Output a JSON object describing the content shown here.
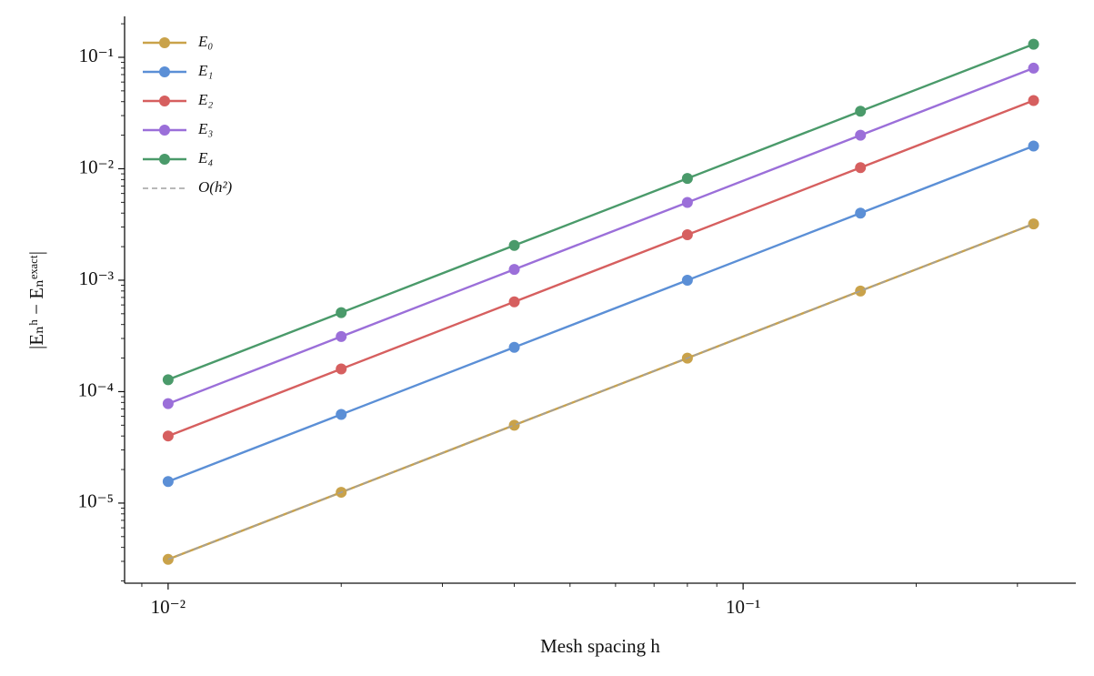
{
  "chart_data": {
    "type": "line",
    "xlabel": "Mesh spacing h",
    "ylabel": "|Eₙʰ − Eₙᵉˣᵃᶜᵗ|",
    "xscale": "log",
    "yscale": "log",
    "x": [
      0.01,
      0.02,
      0.04,
      0.08,
      0.16,
      0.32
    ],
    "series": [
      {
        "name": "E₀",
        "color": "#c9a24a",
        "marker": true,
        "dashed": false,
        "values": [
          3.125e-06,
          1.25e-05,
          5e-05,
          0.0002,
          0.0008,
          0.0032
        ]
      },
      {
        "name": "E₁",
        "color": "#5b8fd6",
        "marker": true,
        "dashed": false,
        "values": [
          1.5625e-05,
          6.25e-05,
          0.00025,
          0.001,
          0.004,
          0.016
        ]
      },
      {
        "name": "E₂",
        "color": "#d65f5f",
        "marker": true,
        "dashed": false,
        "values": [
          4e-05,
          0.00016,
          0.00064,
          0.00256,
          0.01024,
          0.04096
        ]
      },
      {
        "name": "E₃",
        "color": "#9b6fd9",
        "marker": true,
        "dashed": false,
        "values": [
          7.8e-05,
          0.000312,
          0.00125,
          0.00499,
          0.02,
          0.0799
        ]
      },
      {
        "name": "E₄",
        "color": "#4a9a6a",
        "marker": true,
        "dashed": false,
        "values": [
          0.000128,
          0.000512,
          0.00205,
          0.00819,
          0.0328,
          0.131
        ]
      },
      {
        "name": "O(h²)",
        "color": "#a0a0a0",
        "marker": false,
        "dashed": true,
        "values": [
          3.125e-06,
          1.25e-05,
          5e-05,
          0.0002,
          0.0008,
          0.0032
        ]
      }
    ],
    "xlim": [
      0.0084,
      0.379
    ],
    "ylim": [
      1.91e-06,
      0.233
    ],
    "xticks": [
      {
        "value": 0.01,
        "label": "10⁻²"
      },
      {
        "value": 0.1,
        "label": "10⁻¹"
      }
    ],
    "yticks": [
      {
        "value": 1e-05,
        "label": "10⁻⁵"
      },
      {
        "value": 0.0001,
        "label": "10⁻⁴"
      },
      {
        "value": 0.001,
        "label": "10⁻³"
      },
      {
        "value": 0.01,
        "label": "10⁻²"
      },
      {
        "value": 0.1,
        "label": "10⁻¹"
      }
    ],
    "xminorticks": [
      0.009,
      0.02,
      0.03,
      0.04,
      0.05,
      0.06,
      0.07,
      0.08,
      0.09,
      0.2,
      0.3
    ],
    "yminorticks": [
      2e-06,
      3e-06,
      4e-06,
      5e-06,
      6e-06,
      7e-06,
      8e-06,
      9e-06,
      2e-05,
      3e-05,
      4e-05,
      5e-05,
      6e-05,
      7e-05,
      8e-05,
      9e-05,
      0.0002,
      0.0003,
      0.0004,
      0.0005,
      0.0006,
      0.0007,
      0.0008,
      0.0009,
      0.002,
      0.003,
      0.004,
      0.005,
      0.006,
      0.007,
      0.008,
      0.009,
      0.02,
      0.03,
      0.04,
      0.05,
      0.06,
      0.07,
      0.08,
      0.09,
      0.2
    ],
    "grid": false,
    "legend": "upper-left"
  }
}
